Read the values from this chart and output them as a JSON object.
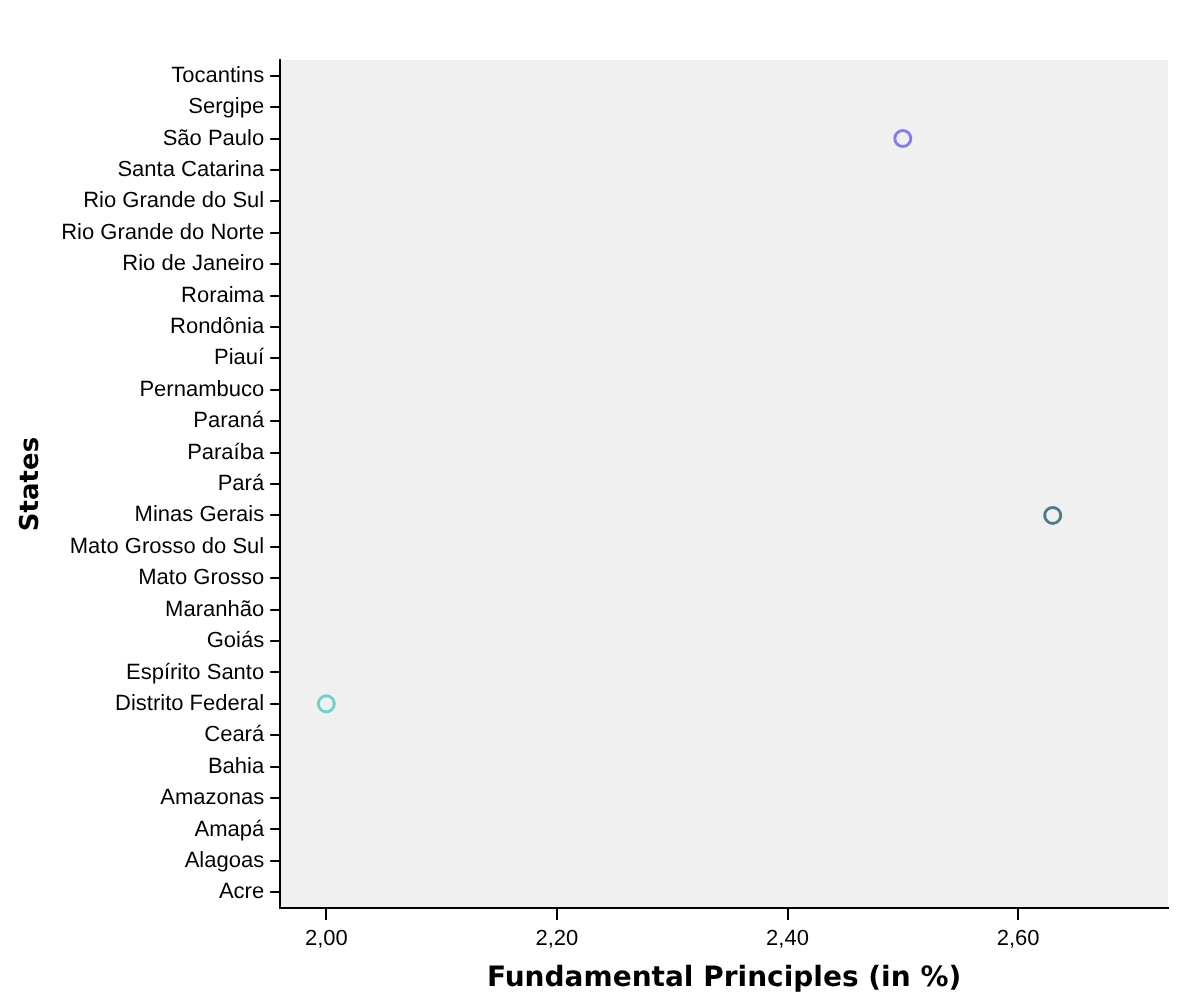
{
  "chart_data": {
    "type": "scatter",
    "orientation": "horizontal",
    "xlabel": "Fundamental Principles (in %)",
    "ylabel": "States",
    "categories": [
      "Tocantins",
      "Sergipe",
      "São Paulo",
      "Santa Catarina",
      "Rio Grande do Sul",
      "Rio Grande do Norte",
      "Rio de Janeiro",
      "Roraima",
      "Rondônia",
      "Piauí",
      "Pernambuco",
      "Paraná",
      "Paraíba",
      "Pará",
      "Minas Gerais",
      "Mato Grosso do Sul",
      "Mato Grosso",
      "Maranhão",
      "Goiás",
      "Espírito Santo",
      "Distrito Federal",
      "Ceará",
      "Bahia",
      "Amazonas",
      "Amapá",
      "Alagoas",
      "Acre"
    ],
    "values": [
      null,
      null,
      2.5,
      null,
      null,
      null,
      null,
      null,
      null,
      null,
      null,
      null,
      null,
      null,
      2.63,
      null,
      null,
      null,
      null,
      null,
      2.0,
      null,
      null,
      null,
      null,
      null,
      null
    ],
    "colors": [
      null,
      null,
      "#7f7ff5",
      null,
      null,
      null,
      null,
      null,
      null,
      null,
      null,
      null,
      null,
      null,
      "#4a7d8c",
      null,
      null,
      null,
      null,
      null,
      "#6fd0d0",
      null,
      null,
      null,
      null,
      null,
      null
    ],
    "marker": "circle",
    "grid": false,
    "legend": false,
    "xlim": [
      1.96,
      2.73
    ],
    "xticks": [
      {
        "value": 2,
        "label": "2,00"
      },
      {
        "value": 2.2,
        "label": "2,20"
      },
      {
        "value": 2.4,
        "label": "2,40"
      },
      {
        "value": 2.6,
        "label": "2,60"
      }
    ]
  }
}
